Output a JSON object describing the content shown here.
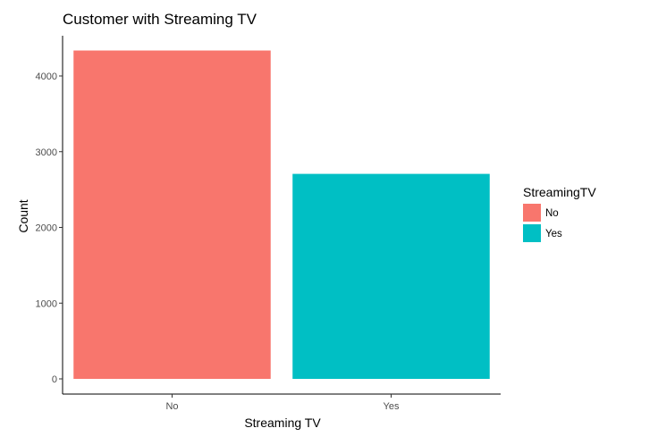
{
  "chart_data": {
    "type": "bar",
    "title": "Customer with Streaming TV",
    "xlabel": "Streaming TV",
    "ylabel": "Count",
    "categories": [
      "No",
      "Yes"
    ],
    "values": [
      4336,
      2707
    ],
    "colors": [
      "#F8766D",
      "#00BFC4"
    ],
    "ylim": [
      0,
      4400
    ],
    "yticks": [
      0,
      1000,
      2000,
      3000,
      4000
    ],
    "grid": false,
    "legend": {
      "title": "StreamingTV",
      "position": "right",
      "entries": [
        "No",
        "Yes"
      ]
    }
  }
}
